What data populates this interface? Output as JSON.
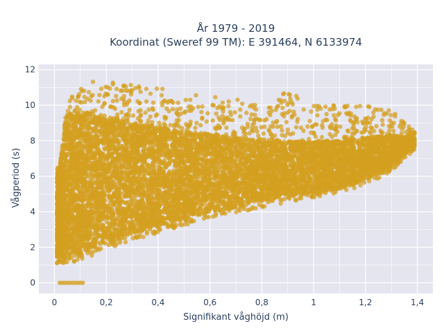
{
  "chart_data": {
    "type": "scatter",
    "title_line1": "År 1979 - 2019",
    "title_line2": "Koordinat (Sweref 99 TM): E 391464, N 6133974",
    "xlabel": "Signifikant våghöjd (m)",
    "ylabel": "Vågperiod (s)",
    "xlim": [
      -0.06,
      1.46
    ],
    "ylim": [
      -0.6,
      12.3
    ],
    "grid": true,
    "marker_color": "#d4a020",
    "plot_bg": "#e5e5f0",
    "grid_color": "#ffffff",
    "x_ticks": [
      {
        "value": 0,
        "label": "0"
      },
      {
        "value": 0.2,
        "label": "0,2"
      },
      {
        "value": 0.4,
        "label": "0,4"
      },
      {
        "value": 0.6,
        "label": "0,6"
      },
      {
        "value": 0.8,
        "label": "0,8"
      },
      {
        "value": 1.0,
        "label": "1"
      },
      {
        "value": 1.2,
        "label": "1,2"
      },
      {
        "value": 1.4,
        "label": "1,4"
      }
    ],
    "y_ticks": [
      {
        "value": 0,
        "label": "0"
      },
      {
        "value": 2,
        "label": "2"
      },
      {
        "value": 4,
        "label": "4"
      },
      {
        "value": 6,
        "label": "6"
      },
      {
        "value": 8,
        "label": "8"
      },
      {
        "value": 10,
        "label": "10"
      },
      {
        "value": 12,
        "label": "12"
      }
    ],
    "point_cloud": {
      "n_points": 9000,
      "x_range": [
        0.01,
        1.39
      ],
      "y_max": 11.8,
      "lower_envelope": [
        [
          0.02,
          1.1
        ],
        [
          0.1,
          1.2
        ],
        [
          0.2,
          1.9
        ],
        [
          0.3,
          2.4
        ],
        [
          0.4,
          2.8
        ],
        [
          0.5,
          3.2
        ],
        [
          0.6,
          3.7
        ],
        [
          0.7,
          3.9
        ],
        [
          0.8,
          4.2
        ],
        [
          0.9,
          4.5
        ],
        [
          1.0,
          4.8
        ],
        [
          1.1,
          5.1
        ],
        [
          1.2,
          5.5
        ],
        [
          1.3,
          6.3
        ],
        [
          1.38,
          7.4
        ]
      ],
      "upper_envelope": [
        [
          0.02,
          6.5
        ],
        [
          0.05,
          10.2
        ],
        [
          0.1,
          11.0
        ],
        [
          0.15,
          11.6
        ],
        [
          0.2,
          11.3
        ],
        [
          0.3,
          11.2
        ],
        [
          0.4,
          11.0
        ],
        [
          0.5,
          10.6
        ],
        [
          0.6,
          10.6
        ],
        [
          0.7,
          10.4
        ],
        [
          0.8,
          10.0
        ],
        [
          0.9,
          10.8
        ],
        [
          1.0,
          10.0
        ],
        [
          1.1,
          10.0
        ],
        [
          1.2,
          10.1
        ],
        [
          1.3,
          9.7
        ],
        [
          1.38,
          8.7
        ]
      ],
      "dense_band": [
        [
          0.05,
          1.5,
          9.5
        ],
        [
          0.1,
          1.5,
          9.6
        ],
        [
          0.15,
          2.0,
          9.5
        ],
        [
          0.2,
          2.2,
          9.4
        ],
        [
          0.3,
          2.8,
          9.0
        ],
        [
          0.4,
          3.2,
          8.8
        ],
        [
          0.5,
          3.6,
          8.5
        ],
        [
          0.6,
          4.0,
          8.4
        ],
        [
          0.7,
          4.2,
          8.2
        ],
        [
          0.8,
          4.6,
          8.0
        ],
        [
          0.9,
          4.9,
          8.0
        ],
        [
          1.0,
          5.0,
          8.0
        ],
        [
          1.1,
          5.3,
          8.0
        ],
        [
          1.2,
          5.8,
          8.2
        ],
        [
          1.3,
          6.6,
          8.3
        ],
        [
          1.38,
          7.6,
          8.2
        ]
      ],
      "zero_period_points": [
        [
          0.02,
          0
        ],
        [
          0.03,
          0
        ],
        [
          0.04,
          0
        ],
        [
          0.05,
          0
        ],
        [
          0.06,
          0
        ],
        [
          0.07,
          0
        ],
        [
          0.08,
          0
        ],
        [
          0.09,
          0
        ],
        [
          0.1,
          0
        ],
        [
          0.11,
          0
        ]
      ]
    }
  }
}
